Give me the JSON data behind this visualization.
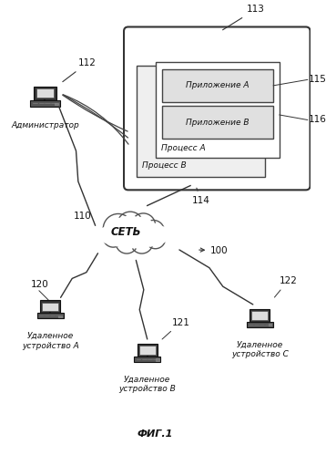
{
  "bg_color": "#ffffff",
  "title": "ФИГ.1",
  "label_100": "100",
  "label_110": "110",
  "label_112": "112",
  "label_113": "113",
  "label_114": "114",
  "label_115": "115",
  "label_116": "116",
  "label_120": "120",
  "label_121": "121",
  "label_122": "122",
  "text_admin": "Администратор",
  "text_net": "СЕТЬ",
  "text_remote_a": "Удаленное\nустройство А",
  "text_remote_b": "Удаленное\nустройство В",
  "text_remote_c": "Удаленное\nустройство С",
  "text_app_a": "Приложение А",
  "text_app_b": "Приложение В",
  "text_proc_a": "Процесс А",
  "text_proc_b": "Процесс В"
}
